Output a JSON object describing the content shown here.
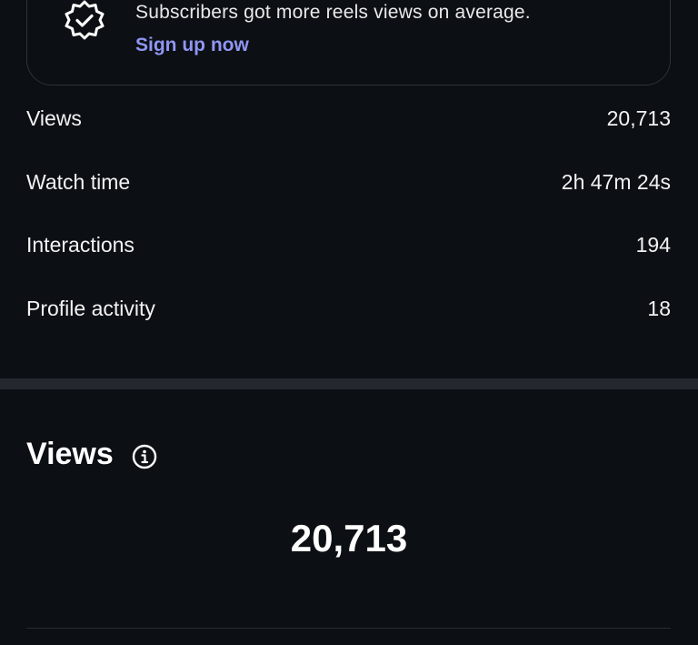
{
  "promo": {
    "text": "Subscribers got more reels views on average.",
    "link_label": "Sign up now",
    "icon": "verified-badge-icon",
    "link_color": "#8f96f2"
  },
  "metrics": [
    {
      "label": "Views",
      "value": "20,713"
    },
    {
      "label": "Watch time",
      "value": "2h 47m 24s"
    },
    {
      "label": "Interactions",
      "value": "194"
    },
    {
      "label": "Profile activity",
      "value": "18"
    }
  ],
  "views_section": {
    "title": "Views",
    "info_icon": "info-icon",
    "total": "20,713"
  }
}
